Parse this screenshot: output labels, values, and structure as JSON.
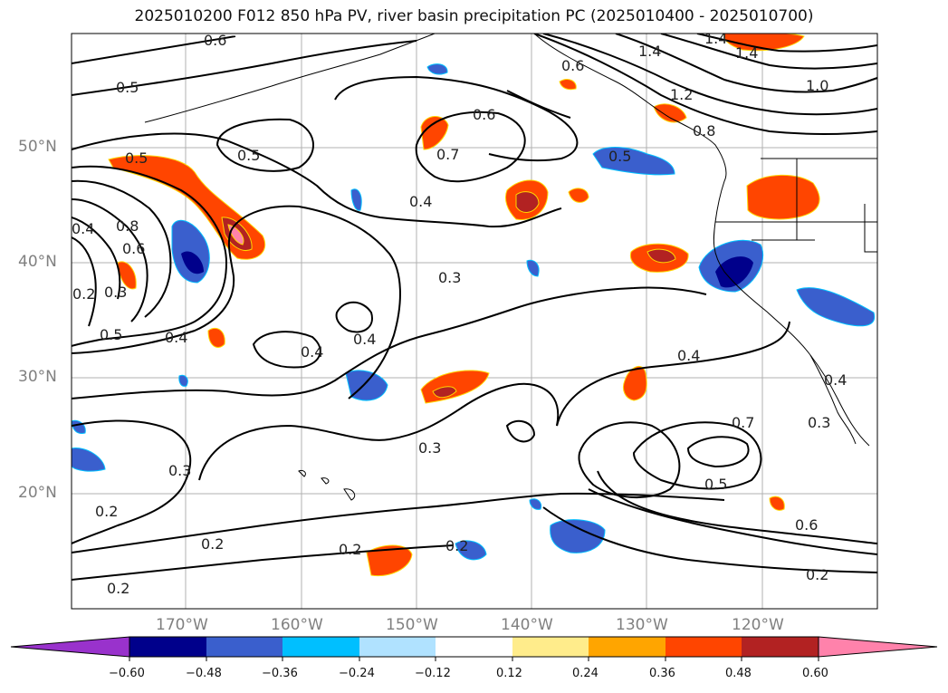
{
  "title": "2025010200 F012 850 hPa PV, river basin precipitation PC (2025010400 - 2025010700)",
  "map": {
    "lat_labels": [
      "50°N",
      "40°N",
      "30°N",
      "20°N"
    ],
    "lon_labels": [
      "170°W",
      "160°W",
      "150°W",
      "140°W",
      "130°W",
      "120°W"
    ],
    "extent": {
      "lon": [
        -180,
        -110
      ],
      "lat": [
        10,
        60
      ]
    },
    "contour_labels": [
      "0.6",
      "0.5",
      "0.5",
      "0.5",
      "0.4",
      "0.8",
      "0.6",
      "0.2",
      "0.3",
      "0.5",
      "0.4",
      "0.4",
      "0.4",
      "0.3",
      "0.6",
      "0.7",
      "0.4",
      "0.3",
      "0.3",
      "0.2",
      "0.2",
      "0.2",
      "0.2",
      "0.2",
      "1.4",
      "1.4",
      "1.4",
      "0.6",
      "1.2",
      "0.8",
      "1.0",
      "0.5",
      "0.4",
      "0.4",
      "0.3",
      "0.7",
      "0.5",
      "0.6",
      "0.2"
    ]
  },
  "colorbar": {
    "ticks": [
      "−0.60",
      "−0.48",
      "−0.36",
      "−0.24",
      "−0.12",
      "0.12",
      "0.24",
      "0.36",
      "0.48",
      "0.60"
    ],
    "colors": [
      "#9932cc",
      "#00008b",
      "#3a5fcd",
      "#00bfff",
      "#b0e2ff",
      "#ffffff",
      "#ffec8b",
      "#ffa500",
      "#ff4500",
      "#b22222",
      "#ff82ab"
    ]
  }
}
